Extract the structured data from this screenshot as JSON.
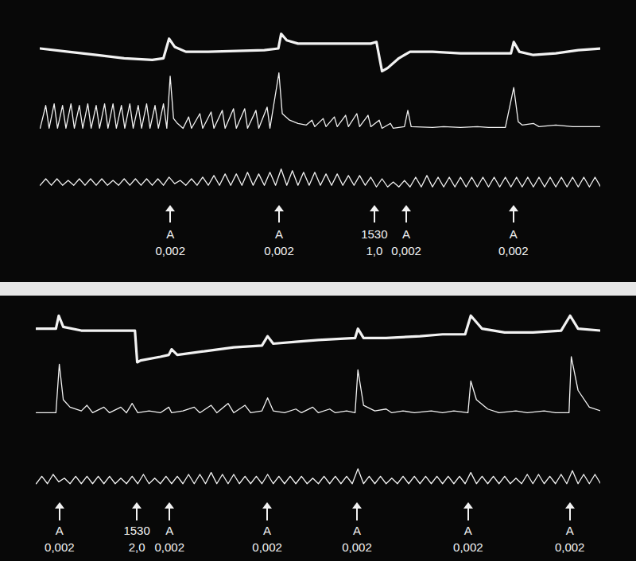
{
  "chart_data": [
    {
      "type": "line",
      "tick_labels": false,
      "xlim": [
        0,
        100
      ],
      "ylim": [
        0,
        100
      ],
      "series": [
        {
          "color": "#f2f2f2",
          "line_style": "thick",
          "x": [
            0,
            5,
            10,
            15,
            20,
            22,
            23,
            24,
            26,
            30,
            35,
            40,
            42.5,
            43,
            44,
            46,
            50,
            55,
            59,
            60,
            61,
            62,
            64,
            66,
            70,
            75,
            80,
            84,
            84.5,
            85.5,
            88,
            92,
            96,
            100
          ],
          "values": [
            90,
            88,
            86,
            84,
            83,
            84,
            96,
            91,
            88,
            88,
            88.5,
            89,
            90,
            99,
            95,
            93,
            93,
            93,
            93,
            94,
            76,
            78,
            84,
            88,
            88,
            87,
            87,
            87,
            94,
            88,
            86,
            87,
            89,
            90
          ]
        },
        {
          "color": "#f2f2f2",
          "line_style": "solid",
          "x": [
            0,
            1,
            1.6,
            2.5,
            3.1,
            4,
            4.6,
            5.5,
            6.1,
            7,
            7.6,
            8.5,
            9.1,
            10,
            10.6,
            11.5,
            12.1,
            13,
            13.6,
            14.5,
            15.1,
            16,
            16.6,
            17.5,
            18.1,
            19,
            19.6,
            20.5,
            21.1,
            22,
            22.6,
            23.2,
            23.8,
            24.5,
            25.5,
            26.5,
            27,
            28.5,
            29,
            30.5,
            31,
            32.5,
            33,
            34.5,
            35,
            36.5,
            37,
            38.5,
            39,
            40.5,
            41,
            42.6,
            43.2,
            44.5,
            46,
            47.5,
            48.5,
            49,
            50.5,
            51,
            52.5,
            53,
            54.5,
            55,
            56.5,
            57,
            58.5,
            59,
            60.5,
            61,
            62.5,
            63,
            65,
            65.6,
            66.2,
            70,
            72,
            75,
            78,
            80,
            83,
            84.5,
            85.3,
            86,
            88,
            89,
            92,
            95,
            100
          ],
          "values": [
            41,
            55,
            41,
            56,
            41,
            55,
            41,
            56,
            41,
            55,
            41,
            56,
            41,
            55,
            41,
            56,
            41,
            56,
            41,
            55,
            41,
            56,
            41,
            55,
            41,
            56,
            41,
            55,
            41,
            56,
            41,
            73,
            47,
            44,
            41,
            48,
            41,
            50,
            41,
            51,
            41,
            52,
            41,
            53,
            41,
            53,
            41,
            52,
            41,
            54,
            41,
            75,
            50,
            46,
            44,
            43,
            46,
            42,
            47,
            42,
            48,
            42,
            49,
            42,
            50,
            42,
            49,
            42,
            46,
            41,
            44,
            41,
            42,
            52,
            42,
            41.5,
            42,
            41.5,
            42,
            41.5,
            41.5,
            66,
            45,
            43,
            44,
            42,
            43,
            42,
            42
          ]
        },
        {
          "color": "#f2f2f2",
          "line_style": "solid",
          "x": [
            0,
            1,
            2,
            3,
            4,
            5,
            6,
            7,
            8,
            9,
            10,
            11,
            12,
            13,
            14,
            15,
            16,
            17,
            18,
            19,
            20,
            21,
            22,
            23,
            24,
            25,
            26,
            27,
            28,
            29,
            30,
            31,
            32,
            33,
            34,
            35,
            36,
            37,
            38,
            39,
            40,
            41,
            42,
            43,
            44,
            45,
            46,
            47,
            48,
            49,
            50,
            51,
            52,
            53,
            54,
            55,
            56,
            57,
            58,
            59,
            60,
            61,
            62,
            63,
            64,
            65,
            66,
            67,
            68,
            69,
            70,
            71,
            72,
            73,
            74,
            75,
            76,
            77,
            78,
            79,
            80,
            81,
            82,
            83,
            84,
            85,
            86,
            87,
            88,
            89,
            90,
            91,
            92,
            93,
            94,
            95,
            96,
            97,
            98,
            99,
            100
          ],
          "values": [
            6,
            10,
            6,
            10,
            6,
            9,
            6,
            10,
            6,
            10,
            6,
            10,
            6,
            9,
            6,
            10,
            6,
            10,
            6,
            10,
            6,
            10,
            6,
            11,
            7,
            9,
            6,
            10,
            6,
            11,
            6,
            12,
            6,
            13,
            6,
            13,
            6,
            14,
            6,
            13,
            6,
            14,
            6,
            16,
            6,
            15,
            6,
            14,
            6,
            14,
            6,
            13,
            6,
            13,
            6,
            12,
            6,
            12,
            6,
            11,
            5,
            10,
            5,
            8,
            5,
            9,
            5,
            11,
            5,
            12,
            5,
            11,
            5,
            11,
            5,
            11,
            5,
            11,
            5,
            11,
            5,
            11,
            5,
            11,
            5,
            11,
            5,
            11,
            5,
            11,
            5,
            11,
            5,
            11,
            5,
            11,
            5,
            11,
            5,
            11,
            5
          ]
        }
      ],
      "annotations": [
        {
          "x": 23.3,
          "text": [
            "A",
            "0,002"
          ]
        },
        {
          "x": 42.7,
          "text": [
            "A",
            "0,002"
          ]
        },
        {
          "x": 59.7,
          "text": [
            "1530",
            "1,0"
          ]
        },
        {
          "x": 65.4,
          "text": [
            "A",
            "0,002"
          ]
        },
        {
          "x": 84.5,
          "text": [
            "A",
            "0,002"
          ]
        }
      ]
    },
    {
      "type": "line",
      "tick_labels": false,
      "xlim": [
        0,
        100
      ],
      "ylim": [
        0,
        100
      ],
      "series": [
        {
          "color": "#f2f2f2",
          "line_style": "thick",
          "x": [
            0,
            3.5,
            4,
            4.8,
            8,
            12,
            17.5,
            17.9,
            18.5,
            22,
            23.5,
            24,
            25,
            30,
            35,
            40,
            41,
            42,
            46,
            50,
            56.5,
            57,
            58,
            62,
            68,
            72,
            76,
            77,
            79,
            83,
            88,
            93,
            94.6,
            96,
            100
          ],
          "values": [
            88,
            88,
            95,
            89,
            87,
            87,
            87,
            70,
            71,
            73,
            74,
            77,
            74,
            76,
            78,
            79,
            84,
            80,
            81,
            82,
            83,
            88,
            83,
            83,
            84,
            85,
            85,
            95,
            88,
            86,
            86,
            87,
            95,
            88,
            87
          ]
        },
        {
          "color": "#f2f2f2",
          "line_style": "solid",
          "x": [
            0,
            3.5,
            4.1,
            4.8,
            6,
            8,
            9,
            10,
            12,
            13,
            15,
            16,
            17,
            18,
            20,
            22,
            23.5,
            24,
            26,
            28,
            29,
            31,
            32,
            34,
            35,
            37,
            38,
            40,
            41,
            42,
            44,
            46,
            47,
            49,
            50,
            52,
            53,
            55,
            56.5,
            57,
            58,
            60,
            62,
            63,
            65,
            67,
            70,
            72,
            74,
            76.5,
            77,
            78,
            80,
            82,
            85,
            87,
            90,
            92,
            94.4,
            94.8,
            96,
            98,
            100
          ],
          "values": [
            43,
            43,
            69,
            50,
            46,
            44,
            47,
            43,
            46,
            43,
            46,
            43,
            48,
            43,
            44,
            43,
            46,
            43,
            44,
            46,
            43,
            47,
            43,
            48,
            43,
            47,
            43,
            44,
            51,
            44,
            43,
            45,
            43,
            46,
            43,
            45,
            43,
            44,
            43,
            66,
            47,
            44,
            45,
            43,
            44,
            43,
            44,
            43,
            44,
            43,
            60,
            50,
            45,
            43,
            44,
            43,
            44,
            43,
            43,
            73,
            55,
            46,
            44
          ]
        },
        {
          "color": "#f2f2f2",
          "line_style": "solid",
          "x": [
            0,
            1,
            2,
            3,
            4,
            5,
            6,
            7,
            8,
            9,
            10,
            11,
            12,
            13,
            14,
            15,
            16,
            17,
            18,
            19,
            20,
            21,
            22,
            23,
            24,
            25,
            26,
            27,
            28,
            29,
            30,
            31,
            32,
            33,
            34,
            35,
            36,
            37,
            38,
            39,
            40,
            41,
            42,
            43,
            44,
            45,
            46,
            47,
            48,
            49,
            50,
            51,
            52,
            53,
            54,
            55,
            56,
            57,
            58,
            59,
            60,
            61,
            62,
            63,
            64,
            65,
            66,
            67,
            68,
            69,
            70,
            71,
            72,
            73,
            74,
            75,
            76,
            77,
            78,
            79,
            80,
            81,
            82,
            83,
            84,
            85,
            86,
            87,
            88,
            89,
            90,
            91,
            92,
            93,
            94,
            95,
            96,
            97,
            98,
            99,
            100
          ],
          "values": [
            5,
            9,
            5,
            10,
            6,
            8,
            5,
            9,
            5,
            9,
            5,
            9,
            5,
            9,
            5,
            8,
            5,
            9,
            5,
            10,
            5,
            8,
            5,
            9,
            5,
            9,
            5,
            10,
            5,
            10,
            5,
            11,
            5,
            10,
            5,
            10,
            5,
            9,
            5,
            9,
            5,
            10,
            5,
            9,
            5,
            9,
            5,
            9,
            5,
            8,
            5,
            9,
            5,
            9,
            5,
            9,
            5,
            13,
            5,
            9,
            5,
            9,
            5,
            8,
            5,
            9,
            5,
            9,
            5,
            9,
            5,
            9,
            5,
            9,
            5,
            9,
            5,
            11,
            5,
            9,
            5,
            9,
            5,
            9,
            5,
            8,
            5,
            10,
            5,
            10,
            5,
            9,
            5,
            10,
            5,
            12,
            5,
            10,
            5,
            10,
            5
          ]
        }
      ],
      "annotations": [
        {
          "x": 4.2,
          "text": [
            "A",
            "0,002"
          ]
        },
        {
          "x": 17.9,
          "text": [
            "1530",
            "2,0"
          ]
        },
        {
          "x": 23.7,
          "text": [
            "A",
            "0,002"
          ]
        },
        {
          "x": 41,
          "text": [
            "A",
            "0,002"
          ]
        },
        {
          "x": 56.9,
          "text": [
            "A",
            "0,002"
          ]
        },
        {
          "x": 76.6,
          "text": [
            "A",
            "0,002"
          ]
        },
        {
          "x": 94.6,
          "text": [
            "A",
            "0,002"
          ]
        }
      ]
    }
  ]
}
